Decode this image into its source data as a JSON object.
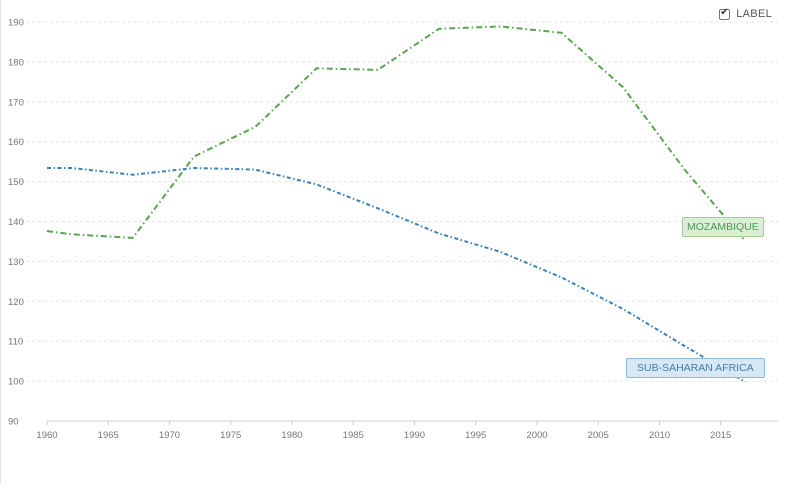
{
  "legend": {
    "label": "LABEL",
    "checked": true
  },
  "chart_data": {
    "type": "line",
    "title": "",
    "xlabel": "",
    "ylabel": "",
    "xlim": [
      1960,
      2018
    ],
    "ylim": [
      90,
      190
    ],
    "x_ticks": [
      1960,
      1965,
      1970,
      1975,
      1980,
      1985,
      1990,
      1995,
      2000,
      2005,
      2010,
      2015
    ],
    "y_ticks": [
      90,
      100,
      110,
      120,
      130,
      140,
      150,
      160,
      170,
      180,
      190
    ],
    "grid": "horizontal-dashed",
    "series": [
      {
        "name": "MOZAMBIQUE",
        "color": "#59a44f",
        "dash": "dash-dot",
        "points": [
          [
            1960,
            137.6
          ],
          [
            1962,
            136.8
          ],
          [
            1967,
            135.9
          ],
          [
            1972,
            156.3
          ],
          [
            1977,
            163.7
          ],
          [
            1982,
            178.4
          ],
          [
            1987,
            178.0
          ],
          [
            1992,
            188.3
          ],
          [
            1997,
            188.9
          ],
          [
            2002,
            187.3
          ],
          [
            2007,
            173.7
          ],
          [
            2012,
            153.2
          ],
          [
            2017,
            135.1
          ]
        ]
      },
      {
        "name": "SUB-SAHARAN AFRICA",
        "color": "#3a82b5",
        "dash": "dot-dash",
        "points": [
          [
            1960,
            153.4
          ],
          [
            1962,
            153.4
          ],
          [
            1967,
            151.7
          ],
          [
            1972,
            153.4
          ],
          [
            1977,
            153.0
          ],
          [
            1982,
            149.3
          ],
          [
            1987,
            143.3
          ],
          [
            1992,
            137.0
          ],
          [
            1997,
            132.4
          ],
          [
            2002,
            126.0
          ],
          [
            2007,
            118.1
          ],
          [
            2012,
            108.9
          ],
          [
            2017,
            99.8
          ]
        ]
      }
    ]
  }
}
